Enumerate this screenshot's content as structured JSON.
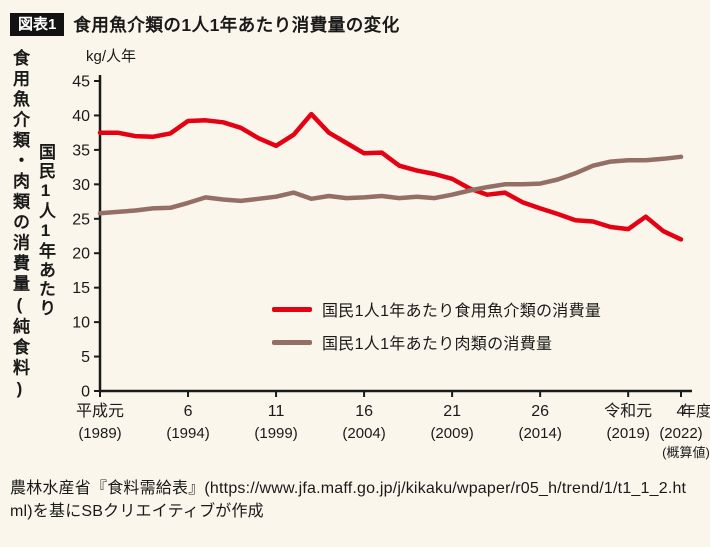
{
  "header": {
    "badge": "図表1",
    "title": "食用魚介類の1人1年あたり消費量の変化"
  },
  "axis_labels": {
    "outer_vertical": "食用魚介類・肉類の消費量(純食料)",
    "inner_vertical": "国民1人1年あたり"
  },
  "chart_data": {
    "type": "line",
    "unit": "kg/人年",
    "x_suffix": "年度",
    "grid": false,
    "legend_position": "inside-middle-right",
    "ylim": [
      0,
      45
    ],
    "yticks": [
      45,
      40,
      35,
      30,
      25,
      20,
      15,
      10,
      5,
      0
    ],
    "x": [
      1989,
      1990,
      1991,
      1992,
      1993,
      1994,
      1995,
      1996,
      1997,
      1998,
      1999,
      2000,
      2001,
      2002,
      2003,
      2004,
      2005,
      2006,
      2007,
      2008,
      2009,
      2010,
      2011,
      2012,
      2013,
      2014,
      2015,
      2016,
      2017,
      2018,
      2019,
      2020,
      2021,
      2022
    ],
    "xticks": [
      {
        "era": "平成元",
        "year": "(1989)",
        "x": 1989
      },
      {
        "era": "6",
        "year": "(1994)",
        "x": 1994
      },
      {
        "era": "11",
        "year": "(1999)",
        "x": 1999
      },
      {
        "era": "16",
        "year": "(2004)",
        "x": 2004
      },
      {
        "era": "21",
        "year": "(2009)",
        "x": 2009
      },
      {
        "era": "26",
        "year": "(2014)",
        "x": 2014
      },
      {
        "era": "令和元",
        "year": "(2019)",
        "x": 2019
      },
      {
        "era": "4",
        "year": "(2022)",
        "x": 2022,
        "note": "(概算値)"
      }
    ],
    "series": [
      {
        "name": "国民1人1年あたり食用魚介類の消費量",
        "color": "#e50012",
        "values": [
          37.5,
          37.5,
          37.0,
          36.9,
          37.4,
          39.2,
          39.3,
          39.0,
          38.2,
          36.7,
          35.6,
          37.2,
          40.2,
          37.5,
          36.0,
          34.5,
          34.6,
          32.7,
          32.0,
          31.5,
          30.8,
          29.4,
          28.5,
          28.8,
          27.4,
          26.5,
          25.7,
          24.8,
          24.6,
          23.8,
          23.5,
          25.3,
          23.2,
          22.0
        ]
      },
      {
        "name": "国民1人1年あたり肉類の消費量",
        "color": "#946f66",
        "values": [
          25.8,
          26.0,
          26.2,
          26.5,
          26.6,
          27.3,
          28.1,
          27.8,
          27.6,
          27.9,
          28.2,
          28.8,
          27.9,
          28.3,
          28.0,
          28.1,
          28.3,
          28.0,
          28.2,
          28.0,
          28.5,
          29.1,
          29.6,
          30.0,
          30.0,
          30.1,
          30.7,
          31.6,
          32.7,
          33.3,
          33.5,
          33.5,
          33.7,
          34.0
        ]
      }
    ]
  },
  "footer": {
    "source": "農林水産省『食料需給表』(https://www.jfa.maff.go.jp/j/kikaku/wpaper/r05_h/trend/1/t1_1_2.html)を基にSBクリエイティブが作成"
  },
  "colors": {
    "background": "#fbf6ec",
    "text": "#1a1a1a",
    "fish_red": "#e50012",
    "meat_brown": "#946f66"
  }
}
